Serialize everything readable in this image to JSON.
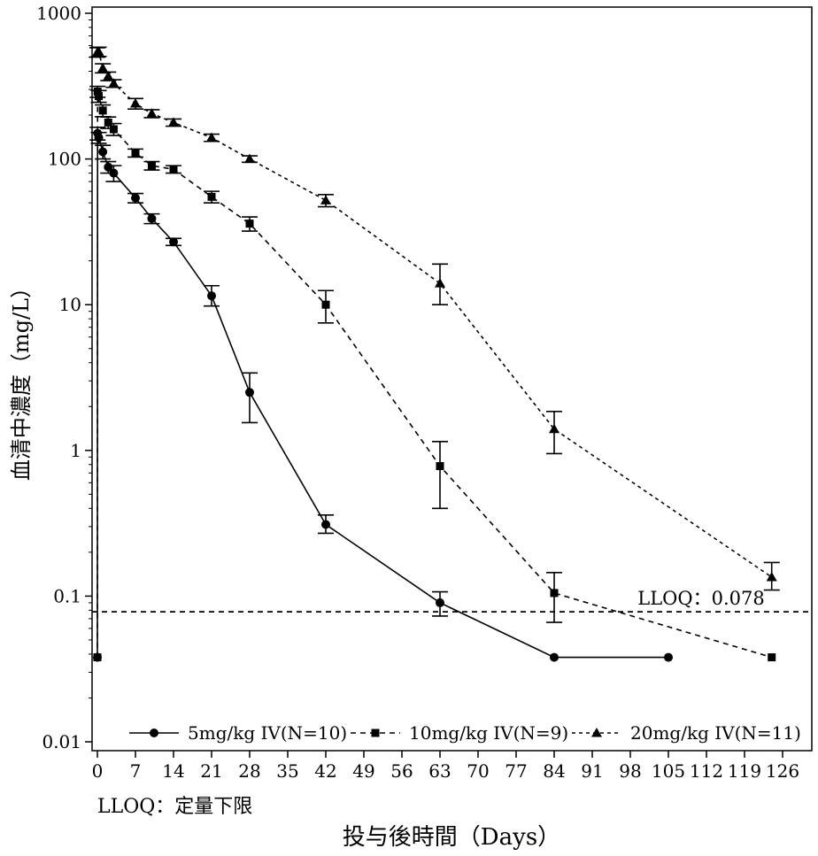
{
  "chart_data": {
    "type": "line",
    "title": "",
    "xlabel": "投与後時間（Days）",
    "ylabel": "血清中濃度（mg/L）",
    "y_scale": "log",
    "xlim": [
      0,
      126
    ],
    "ylim": [
      0.01,
      1000
    ],
    "x_ticks": [
      0,
      7,
      14,
      21,
      28,
      35,
      42,
      49,
      56,
      63,
      70,
      77,
      84,
      91,
      98,
      105,
      112,
      119,
      126
    ],
    "y_ticks": [
      {
        "value": 0.01,
        "label": "0.01"
      },
      {
        "value": 0.1,
        "label": "0.1"
      },
      {
        "value": 1,
        "label": "1"
      },
      {
        "value": 10,
        "label": "10"
      },
      {
        "value": 100,
        "label": "100"
      },
      {
        "value": 1000,
        "label": "1000"
      }
    ],
    "lloq": {
      "value": 0.078,
      "label": "LLOQ：0.078"
    },
    "footnote": "LLOQ：定量下限",
    "series": [
      {
        "name": "5mg/kg IV(N=10)",
        "marker": "circle",
        "dash": "solid",
        "points": [
          {
            "x": 0,
            "y": 0.038,
            "lo": 0.038,
            "hi": 0.038
          },
          {
            "x": 0.04,
            "y": 150,
            "lo": 135,
            "hi": 165
          },
          {
            "x": 0.25,
            "y": 140,
            "lo": 128,
            "hi": 152
          },
          {
            "x": 1,
            "y": 112,
            "lo": 100,
            "hi": 124
          },
          {
            "x": 2,
            "y": 88,
            "lo": 80,
            "hi": 96
          },
          {
            "x": 3,
            "y": 80,
            "lo": 70,
            "hi": 90
          },
          {
            "x": 7,
            "y": 54,
            "lo": 50,
            "hi": 58
          },
          {
            "x": 10,
            "y": 39,
            "lo": 36,
            "hi": 42
          },
          {
            "x": 14,
            "y": 27,
            "lo": 25.5,
            "hi": 28.5
          },
          {
            "x": 21,
            "y": 11.5,
            "lo": 9.8,
            "hi": 13.5
          },
          {
            "x": 28,
            "y": 2.5,
            "lo": 1.55,
            "hi": 3.4
          },
          {
            "x": 42,
            "y": 0.31,
            "lo": 0.27,
            "hi": 0.36
          },
          {
            "x": 63,
            "y": 0.09,
            "lo": 0.073,
            "hi": 0.107
          },
          {
            "x": 84,
            "y": 0.038,
            "lo": 0.038,
            "hi": 0.038
          },
          {
            "x": 105,
            "y": 0.038,
            "lo": 0.038,
            "hi": 0.038
          }
        ]
      },
      {
        "name": "10mg/kg IV(N=9)",
        "marker": "square",
        "dash": "6,5",
        "points": [
          {
            "x": 0,
            "y": 0.038,
            "lo": 0.038,
            "hi": 0.038
          },
          {
            "x": 0.04,
            "y": 290,
            "lo": 265,
            "hi": 315
          },
          {
            "x": 0.25,
            "y": 270,
            "lo": 245,
            "hi": 295
          },
          {
            "x": 1,
            "y": 215,
            "lo": 195,
            "hi": 235
          },
          {
            "x": 2,
            "y": 178,
            "lo": 162,
            "hi": 194
          },
          {
            "x": 3,
            "y": 160,
            "lo": 145,
            "hi": 175
          },
          {
            "x": 7,
            "y": 110,
            "lo": 103,
            "hi": 117
          },
          {
            "x": 10,
            "y": 90,
            "lo": 84,
            "hi": 96
          },
          {
            "x": 14,
            "y": 85,
            "lo": 80,
            "hi": 90
          },
          {
            "x": 21,
            "y": 55,
            "lo": 50,
            "hi": 60
          },
          {
            "x": 28,
            "y": 36,
            "lo": 32,
            "hi": 40
          },
          {
            "x": 42,
            "y": 10,
            "lo": 7.5,
            "hi": 12.5
          },
          {
            "x": 63,
            "y": 0.78,
            "lo": 0.4,
            "hi": 1.15
          },
          {
            "x": 84,
            "y": 0.105,
            "lo": 0.066,
            "hi": 0.145
          },
          {
            "x": 124,
            "y": 0.038,
            "lo": 0.038,
            "hi": 0.038
          }
        ]
      },
      {
        "name": "20mg/kg IV(N=11)",
        "marker": "triangle",
        "dash": "4,4",
        "points": [
          {
            "x": 0,
            "y": 540,
            "lo": 500,
            "hi": 580
          },
          {
            "x": 0.25,
            "y": 545,
            "lo": 505,
            "hi": 585
          },
          {
            "x": 1,
            "y": 420,
            "lo": 390,
            "hi": 450
          },
          {
            "x": 2,
            "y": 370,
            "lo": 345,
            "hi": 395
          },
          {
            "x": 3,
            "y": 330,
            "lo": 310,
            "hi": 350
          },
          {
            "x": 7,
            "y": 240,
            "lo": 220,
            "hi": 260
          },
          {
            "x": 10,
            "y": 205,
            "lo": 192,
            "hi": 218
          },
          {
            "x": 14,
            "y": 178,
            "lo": 168,
            "hi": 188
          },
          {
            "x": 21,
            "y": 140,
            "lo": 132,
            "hi": 148
          },
          {
            "x": 28,
            "y": 100,
            "lo": 95,
            "hi": 105
          },
          {
            "x": 42,
            "y": 52,
            "lo": 47,
            "hi": 57
          },
          {
            "x": 63,
            "y": 14,
            "lo": 10,
            "hi": 19
          },
          {
            "x": 84,
            "y": 1.4,
            "lo": 0.95,
            "hi": 1.85
          },
          {
            "x": 124,
            "y": 0.135,
            "lo": 0.11,
            "hi": 0.17
          }
        ]
      }
    ]
  }
}
